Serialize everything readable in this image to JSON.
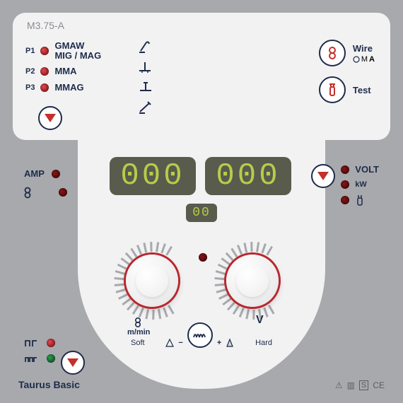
{
  "model": "M3.75-A",
  "modes": [
    {
      "code": "P1",
      "label": "GMAW\nMIG / MAG"
    },
    {
      "code": "P2",
      "label": "MMA"
    },
    {
      "code": "P3",
      "label": "MMAG"
    }
  ],
  "wire": {
    "label": "Wire",
    "sub_unit": "A",
    "sub_prefix": "M"
  },
  "test": {
    "label": "Test"
  },
  "amp": {
    "label": "AMP"
  },
  "volt": {
    "label": "VOLT",
    "kw_label": "kW"
  },
  "display_left": "000",
  "display_right": "000",
  "display_small": "00",
  "knob_left": {
    "unit": "m/min"
  },
  "knob_right": {
    "unit": "V"
  },
  "soft_label": "Soft",
  "hard_label": "Hard",
  "minus": "−",
  "plus": "+",
  "product_name": "Taurus Basic",
  "certs": [
    "⚠",
    "▥",
    "S",
    "CE"
  ],
  "colors": {
    "panel_bg": "#f2f2f3",
    "outer_bg": "#a7a9ac",
    "stroke": "#1e2b4a",
    "led_red": "#c4302b",
    "display_bg": "#595b4c",
    "display_fg": "#b7cc4b"
  }
}
